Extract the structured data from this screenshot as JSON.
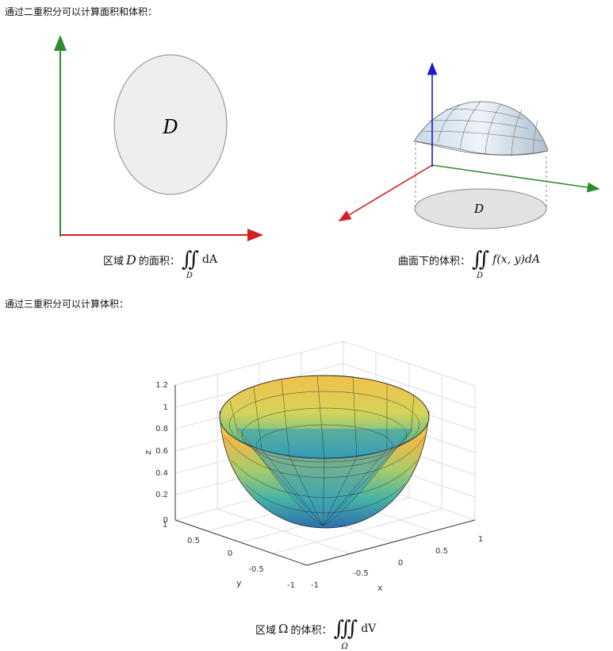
{
  "heading_double": "通过二重积分可以计算面积和体积：",
  "heading_triple": "通过三重积分可以计算体积：",
  "fig_area": {
    "region_label": "D"
  },
  "caption_area": {
    "prefix": "区域",
    "var": "D",
    "suffix": "的面积：",
    "integral": "∬",
    "sub": "D",
    "integrand": "dA"
  },
  "fig_volume": {
    "region_label": "D"
  },
  "caption_volume": {
    "prefix": "曲面下的体积：",
    "integral": "∬",
    "sub": "D",
    "integrand": "f(x, y)dA"
  },
  "caption_triple": {
    "prefix": "区域",
    "var": "Ω",
    "suffix": "的体积：",
    "integral": "∭",
    "sub": "Ω",
    "integrand": "dV"
  },
  "plot3d": {
    "z_label": "z",
    "x_label": "x",
    "y_label": "y",
    "z_ticks": [
      "0",
      "0.2",
      "0.4",
      "0.6",
      "0.8",
      "1",
      "1.2"
    ],
    "x_ticks": [
      "-1",
      "-0.5",
      "0",
      "0.5",
      "1"
    ],
    "y_ticks": [
      "1",
      "0.5",
      "0",
      "-0.5",
      "-1"
    ]
  },
  "colors": {
    "x_axis": "#d42020",
    "y_axis": "#2e8b2e",
    "z_axis": "#1a1ad0",
    "region_fill": "#eeeeee"
  }
}
